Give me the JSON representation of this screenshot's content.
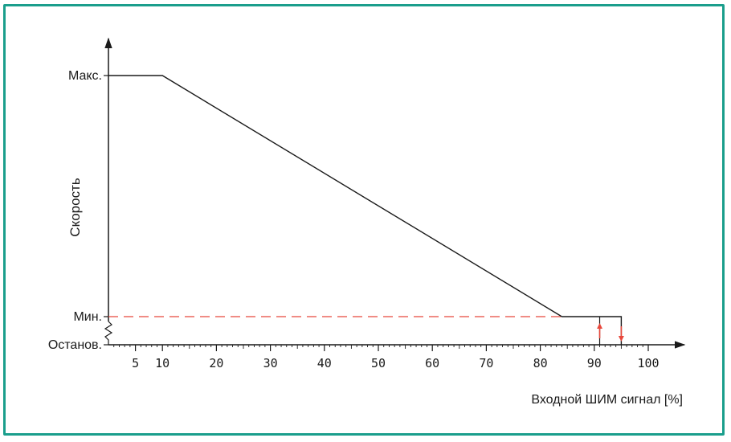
{
  "chart_data": {
    "type": "line",
    "ylabel": "Скорость",
    "xlabel": "Входной ШИМ сигнал [%]",
    "xlim": [
      0,
      100
    ],
    "x_ticks": [
      5,
      10,
      20,
      30,
      40,
      50,
      60,
      70,
      80,
      90,
      100
    ],
    "y_levels": [
      {
        "key": "max",
        "label": "Макс."
      },
      {
        "key": "min",
        "label": "Мин."
      },
      {
        "key": "stop",
        "label": "Останов."
      }
    ],
    "series": [
      {
        "points": [
          {
            "x": 0,
            "y": "max"
          },
          {
            "x": 10,
            "y": "max"
          },
          {
            "x": 84,
            "y": "min"
          },
          {
            "x": 95,
            "y": "min"
          },
          {
            "x": 95,
            "y": "stop"
          }
        ],
        "color": "#1a1a1a"
      }
    ],
    "min_reference_line": {
      "from_x": 0,
      "to_x": 84,
      "color": "#e8483c",
      "style": "dashed"
    },
    "hysteresis": {
      "x": [
        91,
        95
      ],
      "stop_at": 95,
      "restart_at": 91,
      "arrow_color": "#e8483c"
    },
    "grid": false,
    "legend": "none"
  }
}
